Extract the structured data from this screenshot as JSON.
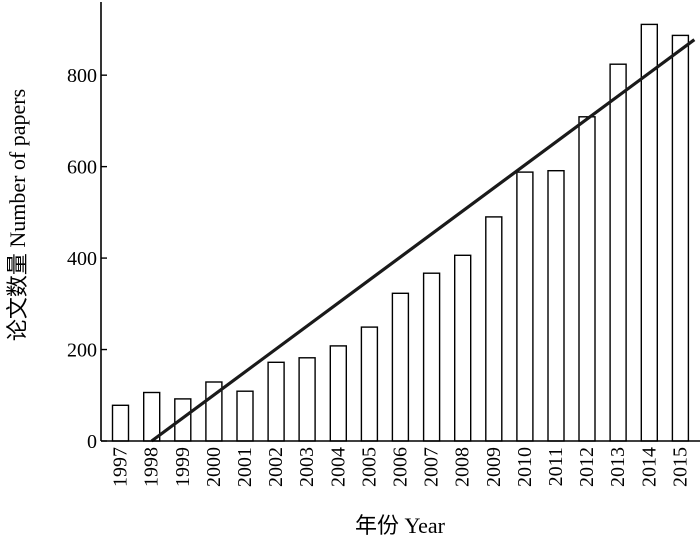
{
  "chart_data": {
    "type": "bar",
    "categories": [
      "1997",
      "1998",
      "1999",
      "2000",
      "2001",
      "2002",
      "2003",
      "2004",
      "2005",
      "2006",
      "2007",
      "2008",
      "2009",
      "2010",
      "2011",
      "2012",
      "2013",
      "2014",
      "2015"
    ],
    "values": [
      78,
      106,
      92,
      129,
      109,
      172,
      182,
      208,
      249,
      323,
      367,
      406,
      490,
      588,
      591,
      709,
      824,
      911,
      887
    ],
    "trendline": {
      "type": "linear",
      "start": {
        "x": "1998",
        "y": 0
      },
      "end": {
        "x": "2015",
        "y": 855
      }
    },
    "xlabel": "年份 Year",
    "ylabel": "论文数量 Number of papers",
    "ylim": [
      0,
      960
    ],
    "yticks": [
      0,
      200,
      400,
      600,
      800
    ],
    "grid": false,
    "colors": {
      "bar_fill": "#ffffff",
      "bar_stroke": "#000000",
      "trendline": "#1a1a1a",
      "axis": "#000000"
    }
  }
}
